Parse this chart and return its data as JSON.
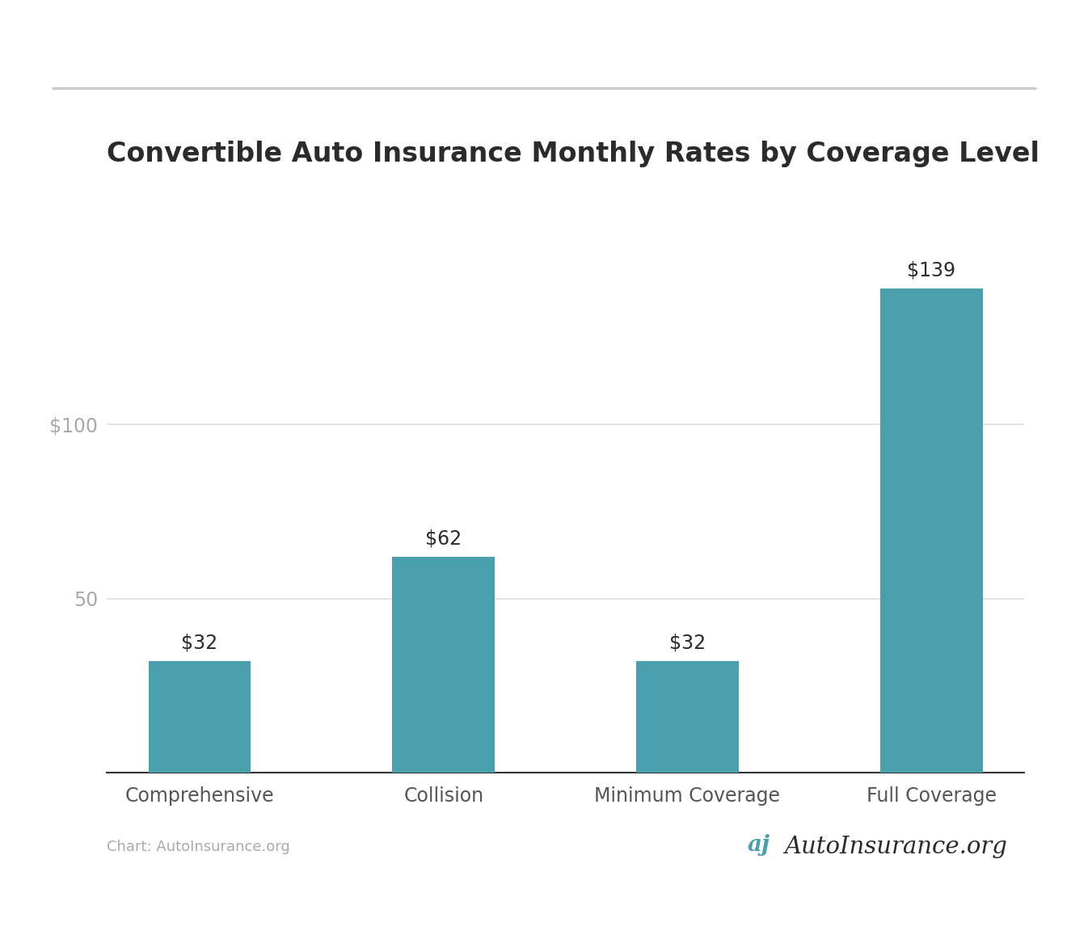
{
  "title": "Convertible Auto Insurance Monthly Rates by Coverage Level",
  "categories": [
    "Comprehensive",
    "Collision",
    "Minimum Coverage",
    "Full Coverage"
  ],
  "values": [
    32,
    62,
    32,
    139
  ],
  "bar_color": "#4a9fad",
  "bar_labels": [
    "$32",
    "$62",
    "$32",
    "$139"
  ],
  "yticks": [
    50,
    100
  ],
  "ytick_labels": [
    "50",
    "$100"
  ],
  "ylim": [
    0,
    155
  ],
  "background_color": "#ffffff",
  "grid_color": "#e0e0e0",
  "title_fontsize": 24,
  "tick_fontsize": 17,
  "label_fontsize": 17,
  "bar_label_fontsize": 17,
  "attribution_text": "Chart: AutoInsurance.org",
  "attribution_fontsize": 13,
  "top_line_color": "#cccccc",
  "axis_label_color": "#aaaaaa",
  "title_color": "#2b2b2b",
  "category_label_color": "#555555",
  "bottom_spine_color": "#333333"
}
